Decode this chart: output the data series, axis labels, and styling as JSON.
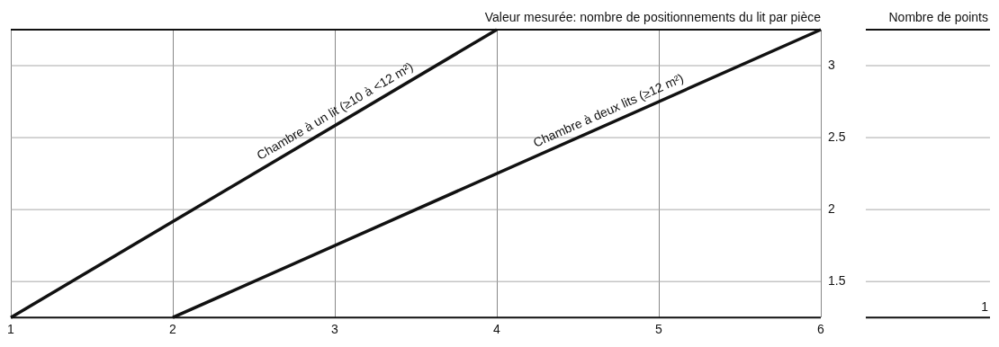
{
  "chart_data": {
    "type": "line",
    "xlabel": "Valeur mesurée: nombre de positionnements du lit par pièce",
    "ylabel": "Nombre de points",
    "series": [
      {
        "name": "Chambre à un lit (≥10 à <12 m²)",
        "color": "#111111",
        "x": [
          1,
          4
        ],
        "values": [
          1.25,
          3.25
        ]
      },
      {
        "name": "Chambre à deux lits (≥12 m²)",
        "color": "#111111",
        "x": [
          2,
          6
        ],
        "values": [
          1.25,
          3.25
        ]
      }
    ],
    "xlim": [
      1,
      6
    ],
    "xticks": [
      1,
      2,
      3,
      4,
      5,
      6
    ],
    "ylim": [
      1.25,
      3.25
    ],
    "yticks": [
      1.5,
      2,
      2.5,
      3
    ],
    "annotations": [
      "1"
    ],
    "grid": true,
    "legend": false,
    "marker": "none",
    "line_style": "solid"
  }
}
